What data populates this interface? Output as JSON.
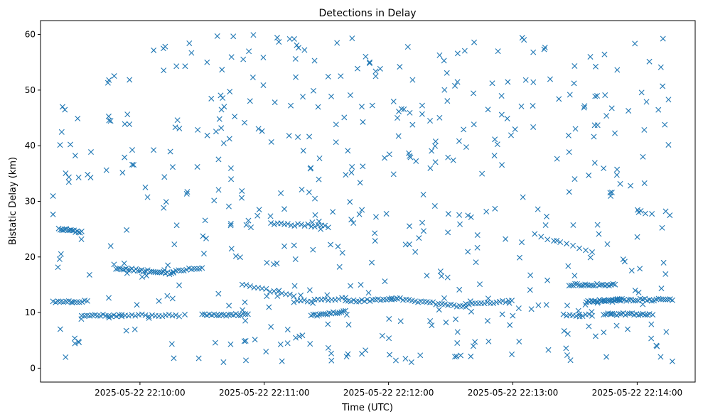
{
  "chart_data": {
    "type": "scatter",
    "title": "Detections in Delay",
    "xlabel": "Time (UTC)",
    "ylabel": "Bistatic Delay (km)",
    "marker": "x",
    "color": "#1f77b4",
    "grid": false,
    "legend": "none",
    "xlim": [
      "2025-05-22 22:09:12",
      "2025-05-22 22:14:28"
    ],
    "ylim": [
      -2.5,
      62.5
    ],
    "xticks": [
      "2025-05-22 22:10:00",
      "2025-05-22 22:11:00",
      "2025-05-22 22:12:00",
      "2025-05-22 22:13:00",
      "2025-05-22 22:14:00"
    ],
    "yticks": [
      0,
      10,
      20,
      30,
      40,
      50,
      60
    ],
    "time_start": "2025-05-22 22:09:18",
    "time_end": "2025-05-22 22:14:17",
    "point_count": 900
  }
}
